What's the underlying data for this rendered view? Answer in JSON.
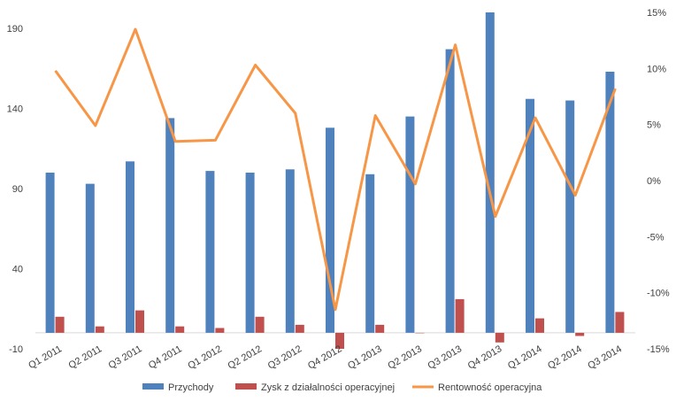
{
  "chart_data": {
    "type": "bar",
    "categories": [
      "Q1 2011",
      "Q2 2011",
      "Q3 2011",
      "Q4 2011",
      "Q1 2012",
      "Q2 2012",
      "Q3 2012",
      "Q4 2012",
      "Q1 2013",
      "Q2 2013",
      "Q3 2013",
      "Q4 2013",
      "Q1 2014",
      "Q2 2014",
      "Q3 2014"
    ],
    "series": [
      {
        "name": "Przychody",
        "kind": "bar",
        "axis": "left",
        "color": "#4F81BD",
        "values": [
          100,
          93,
          107,
          134,
          101,
          100,
          102,
          128,
          99,
          135,
          177,
          200,
          146,
          145,
          163
        ]
      },
      {
        "name": "Zysk z działalności operacyjnej",
        "kind": "bar",
        "axis": "left",
        "color": "#C0504D",
        "values": [
          10,
          4,
          14,
          4,
          3,
          10,
          5,
          -10,
          5,
          0,
          21,
          -6,
          9,
          -2,
          13
        ]
      },
      {
        "name": "Rentowność operacyjna",
        "kind": "line",
        "axis": "right",
        "color": "#F79646",
        "values": [
          9.8,
          4.9,
          13.5,
          3.5,
          3.6,
          10.3,
          6.0,
          -11.5,
          5.8,
          -0.3,
          12.1,
          -3.2,
          5.6,
          -1.3,
          8.2
        ]
      }
    ],
    "ylim_left": [
      -10,
      200
    ],
    "yticks_left": [
      "-10",
      "40",
      "90",
      "140",
      "190"
    ],
    "ylim_right": [
      -15,
      15
    ],
    "yticks_right": [
      "-15%",
      "-10%",
      "-5%",
      "0%",
      "5%",
      "10%",
      "15%"
    ],
    "grid": false,
    "legend_position": "bottom"
  }
}
